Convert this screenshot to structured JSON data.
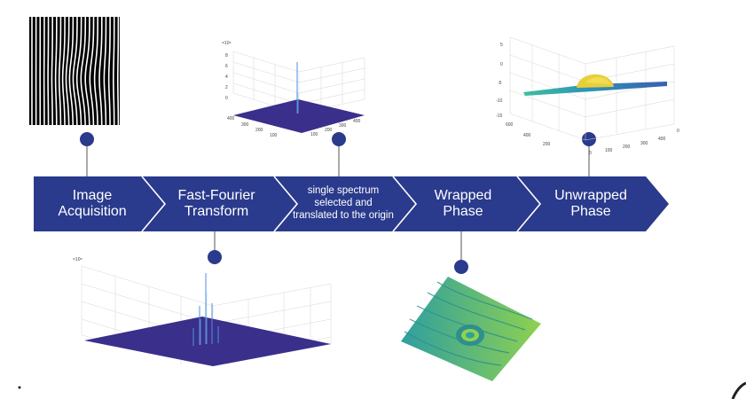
{
  "flow": {
    "steps": [
      {
        "label": "Image Acquisition"
      },
      {
        "label": "Fast-Fourier Transform"
      },
      {
        "label": "single spectrum selected and translated to the origin"
      },
      {
        "label": "Wrapped Phase"
      },
      {
        "label": "Unwrapped Phase"
      }
    ]
  },
  "plots": {
    "spectrum_top": {
      "exponent": "×10⁸",
      "z_ticks": [
        "8",
        "6",
        "4",
        "2",
        "0"
      ],
      "x_ticks": [
        "400",
        "300",
        "200",
        "100"
      ],
      "y_ticks": [
        "100",
        "200",
        "300",
        "400"
      ]
    },
    "spectrum_bottom": {
      "exponent": "×10⁸"
    },
    "unwrapped": {
      "z_ticks": [
        "5",
        "0",
        "-5",
        "-10",
        "-15"
      ],
      "x_ticks": [
        "600",
        "400",
        "200"
      ],
      "y_ticks": [
        "0",
        "100",
        "200",
        "300",
        "400"
      ],
      "corner_tick": "0"
    }
  },
  "colors": {
    "arrow_fill": "#2a3a8c",
    "arrow_separator": "#ffffff",
    "marker": "#2a3a8c",
    "surface_dark": "#3a2f8a",
    "surface_yellow": "#e8cf3a",
    "phase_green": "#8fd14f",
    "phase_teal": "#2e9fa0"
  }
}
